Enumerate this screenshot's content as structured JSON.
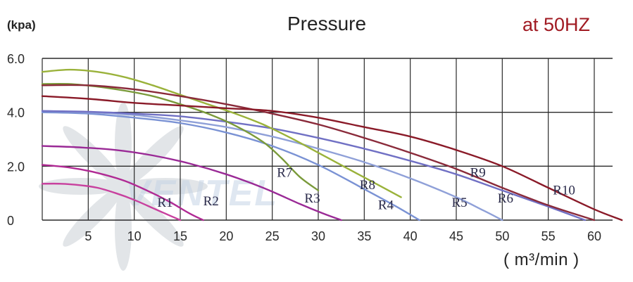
{
  "chart_data": {
    "type": "line",
    "title": "Pressure",
    "subtitle": "at 50HZ",
    "ylabel": "(kpa)",
    "xlabel": "( m³/min )",
    "xlim": [
      0,
      63
    ],
    "ylim": [
      0,
      6.0
    ],
    "x_gridlines": [
      0,
      5,
      10,
      15,
      20,
      25,
      30,
      35,
      40,
      45,
      50,
      55,
      60
    ],
    "y_gridlines": [
      0,
      2.0,
      4.0,
      6.0
    ],
    "x_ticks": [
      "5",
      "10",
      "15",
      "20",
      "25",
      "30",
      "35",
      "40",
      "45",
      "50",
      "55",
      "60"
    ],
    "y_ticks": [
      "0",
      "2.0",
      "4.0",
      "6.0"
    ],
    "watermark": "VENTEL",
    "series": [
      {
        "name": "R1",
        "label": "R1",
        "color": "#c8409e",
        "label_at": [
          12.5,
          0.5
        ],
        "x": [
          0,
          2,
          4,
          6,
          8,
          10,
          12,
          14,
          15
        ],
        "y": [
          1.35,
          1.35,
          1.3,
          1.2,
          1.0,
          0.75,
          0.45,
          0.15,
          0
        ]
      },
      {
        "name": "R2",
        "label": "R2",
        "color": "#b02a94",
        "label_at": [
          17.5,
          0.55
        ],
        "x": [
          0,
          3,
          6,
          9,
          12,
          14,
          16,
          17.5
        ],
        "y": [
          2.05,
          1.95,
          1.75,
          1.45,
          1.0,
          0.65,
          0.25,
          0
        ]
      },
      {
        "name": "R3",
        "label": "R3",
        "color": "#9a2a96",
        "label_at": [
          28.5,
          0.65
        ],
        "x": [
          0,
          4,
          8,
          12,
          16,
          20,
          24,
          28,
          30.5,
          32.5
        ],
        "y": [
          2.75,
          2.7,
          2.6,
          2.4,
          2.1,
          1.7,
          1.2,
          0.6,
          0.25,
          0
        ]
      },
      {
        "name": "R4",
        "label": "R4",
        "color": "#7a92d4",
        "label_at": [
          36.5,
          0.4
        ],
        "x": [
          0,
          5,
          10,
          15,
          20,
          25,
          30,
          35,
          38.5,
          41
        ],
        "y": [
          4.0,
          3.95,
          3.8,
          3.6,
          3.25,
          2.75,
          2.05,
          1.15,
          0.5,
          0
        ]
      },
      {
        "name": "R5",
        "label": "R5",
        "color": "#8fa0d8",
        "label_at": [
          44.5,
          0.5
        ],
        "x": [
          0,
          5,
          10,
          15,
          20,
          25,
          30,
          35,
          40,
          45,
          48,
          50
        ],
        "y": [
          4.05,
          4.0,
          3.9,
          3.7,
          3.45,
          3.1,
          2.65,
          2.15,
          1.55,
          0.85,
          0.35,
          0
        ]
      },
      {
        "name": "R6",
        "label": "R6",
        "color": "#7070c4",
        "label_at": [
          49.5,
          0.65
        ],
        "x": [
          0,
          5,
          10,
          15,
          20,
          25,
          30,
          35,
          40,
          45,
          50,
          55,
          59
        ],
        "y": [
          4.05,
          4.02,
          3.95,
          3.85,
          3.65,
          3.4,
          3.05,
          2.65,
          2.2,
          1.7,
          1.1,
          0.5,
          0
        ]
      },
      {
        "name": "R7",
        "label": "R7",
        "color": "#7a9a3a",
        "label_at": [
          25.5,
          1.6
        ],
        "x": [
          0,
          3,
          6,
          9,
          12,
          15,
          18,
          21,
          24,
          26,
          28,
          30
        ],
        "y": [
          5.05,
          5.05,
          4.95,
          4.8,
          4.6,
          4.3,
          3.95,
          3.5,
          2.9,
          2.3,
          1.6,
          1.1
        ]
      },
      {
        "name": "R8",
        "label": "R8",
        "color": "#9ab23a",
        "label_at": [
          34.5,
          1.15
        ],
        "x": [
          0,
          3,
          6,
          9,
          12,
          15,
          18,
          21,
          24,
          27,
          30,
          33,
          36,
          39
        ],
        "y": [
          5.5,
          5.58,
          5.5,
          5.3,
          5.0,
          4.65,
          4.3,
          3.95,
          3.55,
          3.05,
          2.5,
          1.95,
          1.4,
          0.85
        ]
      },
      {
        "name": "R9",
        "label": "R9",
        "color": "#8a2a3a",
        "label_at": [
          46.5,
          1.6
        ],
        "x": [
          0,
          5,
          10,
          15,
          20,
          25,
          30,
          35,
          40,
          45,
          50,
          55,
          60
        ],
        "y": [
          5.0,
          5.0,
          4.85,
          4.6,
          4.3,
          3.95,
          3.55,
          3.05,
          2.5,
          1.9,
          1.2,
          0.55,
          0
        ]
      },
      {
        "name": "R10",
        "label": "R10",
        "color": "#8a1a28",
        "label_at": [
          55.5,
          0.95
        ],
        "x": [
          0,
          5,
          10,
          15,
          20,
          25,
          30,
          35,
          40,
          45,
          50,
          55,
          60,
          63
        ],
        "y": [
          4.6,
          4.5,
          4.35,
          4.25,
          4.15,
          4.05,
          3.8,
          3.45,
          3.1,
          2.6,
          2.0,
          1.2,
          0.4,
          0
        ]
      }
    ]
  }
}
